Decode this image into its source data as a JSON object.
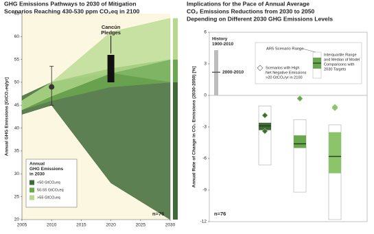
{
  "chart_data": [
    {
      "type": "area_range",
      "title_lines": [
        "GHG Emissions Pathways to 2030 of Mitigation",
        "Scenarios Reaching 430-530 ppm CO₂eq in 2100"
      ],
      "ylabel": "Annual GHG Emissions [GtCO₂eq/yr]",
      "xlim": [
        2005,
        2030
      ],
      "xticks": [
        2005,
        2010,
        2015,
        2020,
        2025,
        2030
      ],
      "ylim": [
        20,
        65
      ],
      "yticks": [
        20,
        25,
        30,
        35,
        40,
        45,
        50,
        55,
        60,
        65
      ],
      "x": [
        2005,
        2010,
        2020,
        2030
      ],
      "series": [
        {
          "name": "<50 GtCO₂eq",
          "color": "#3f6b37",
          "low": [
            43,
            45,
            28,
            20
          ],
          "high": [
            47,
            50,
            52,
            50
          ]
        },
        {
          "name": "50-55 GtCO₂eq",
          "color": "#6aa84f",
          "low": [
            44,
            46,
            49,
            50
          ],
          "high": [
            46,
            50,
            53,
            55
          ]
        },
        {
          "name": ">55 GtCO₂eq",
          "color": "#b6d98c",
          "low": [
            44,
            47,
            52,
            55
          ],
          "high": [
            46,
            50,
            61,
            64
          ]
        }
      ],
      "legend_title_lines": [
        "Annual",
        "GHG Emissions",
        "in 2030"
      ],
      "history": {
        "x": 2010,
        "value": 49,
        "low": 45,
        "high": 53.5
      },
      "pledges": {
        "label_lines": [
          "Cancún",
          "Pledges"
        ],
        "x": 2020,
        "low": 50,
        "high": 56
      },
      "annotation": "n=76"
    },
    {
      "type": "box",
      "title_lines": [
        "Implications for the Pace of Annual Average",
        "CO₂ Emissions Reductions from 2030 to 2050",
        "Depending on Different 2030 GHG Emissions Levels"
      ],
      "ylabel": "Annual Rate of Change in CO₂ Emissions (2030-2050) [%]",
      "ylim": [
        -12,
        6
      ],
      "yticks": [
        -12,
        -9,
        -6,
        -3,
        0,
        3,
        6
      ],
      "boxes": [
        {
          "color": "#3f6b37",
          "range": [
            -6.6,
            -1.0
          ],
          "iqr": [
            -3.3,
            -2.6
          ],
          "median": -2.9,
          "diamonds": [
            -1.9,
            -3.4
          ]
        },
        {
          "color": "#6aa84f",
          "range": [
            -9.2,
            -2.3
          ],
          "iqr": [
            -5.0,
            -3.8
          ],
          "median": -4.6,
          "diamonds": [
            -0.3
          ]
        },
        {
          "color": "#8cc46a",
          "range": [
            -11.8,
            -2.8
          ],
          "iqr": [
            -7.4,
            -3.5
          ],
          "median": -5.8,
          "diamonds": [
            -1.1,
            -1.2
          ]
        }
      ],
      "history": {
        "label_lines": [
          "History",
          "1900-2010"
        ],
        "low": 0,
        "high": 4.3
      },
      "decade": {
        "label": "2000-2010",
        "value": 2.2
      },
      "legend": {
        "range_label": "AR5 Scenario Range",
        "iqr_lines": [
          "Interquartile Range",
          "and Median of Model",
          "Comparisons with",
          "2030 Targets"
        ],
        "diamond_lines": [
          "Scenarios with High",
          "Net Negative Emissions",
          ">20 GtCO₂/yr in 2100"
        ]
      },
      "annotation": "n=76"
    }
  ]
}
